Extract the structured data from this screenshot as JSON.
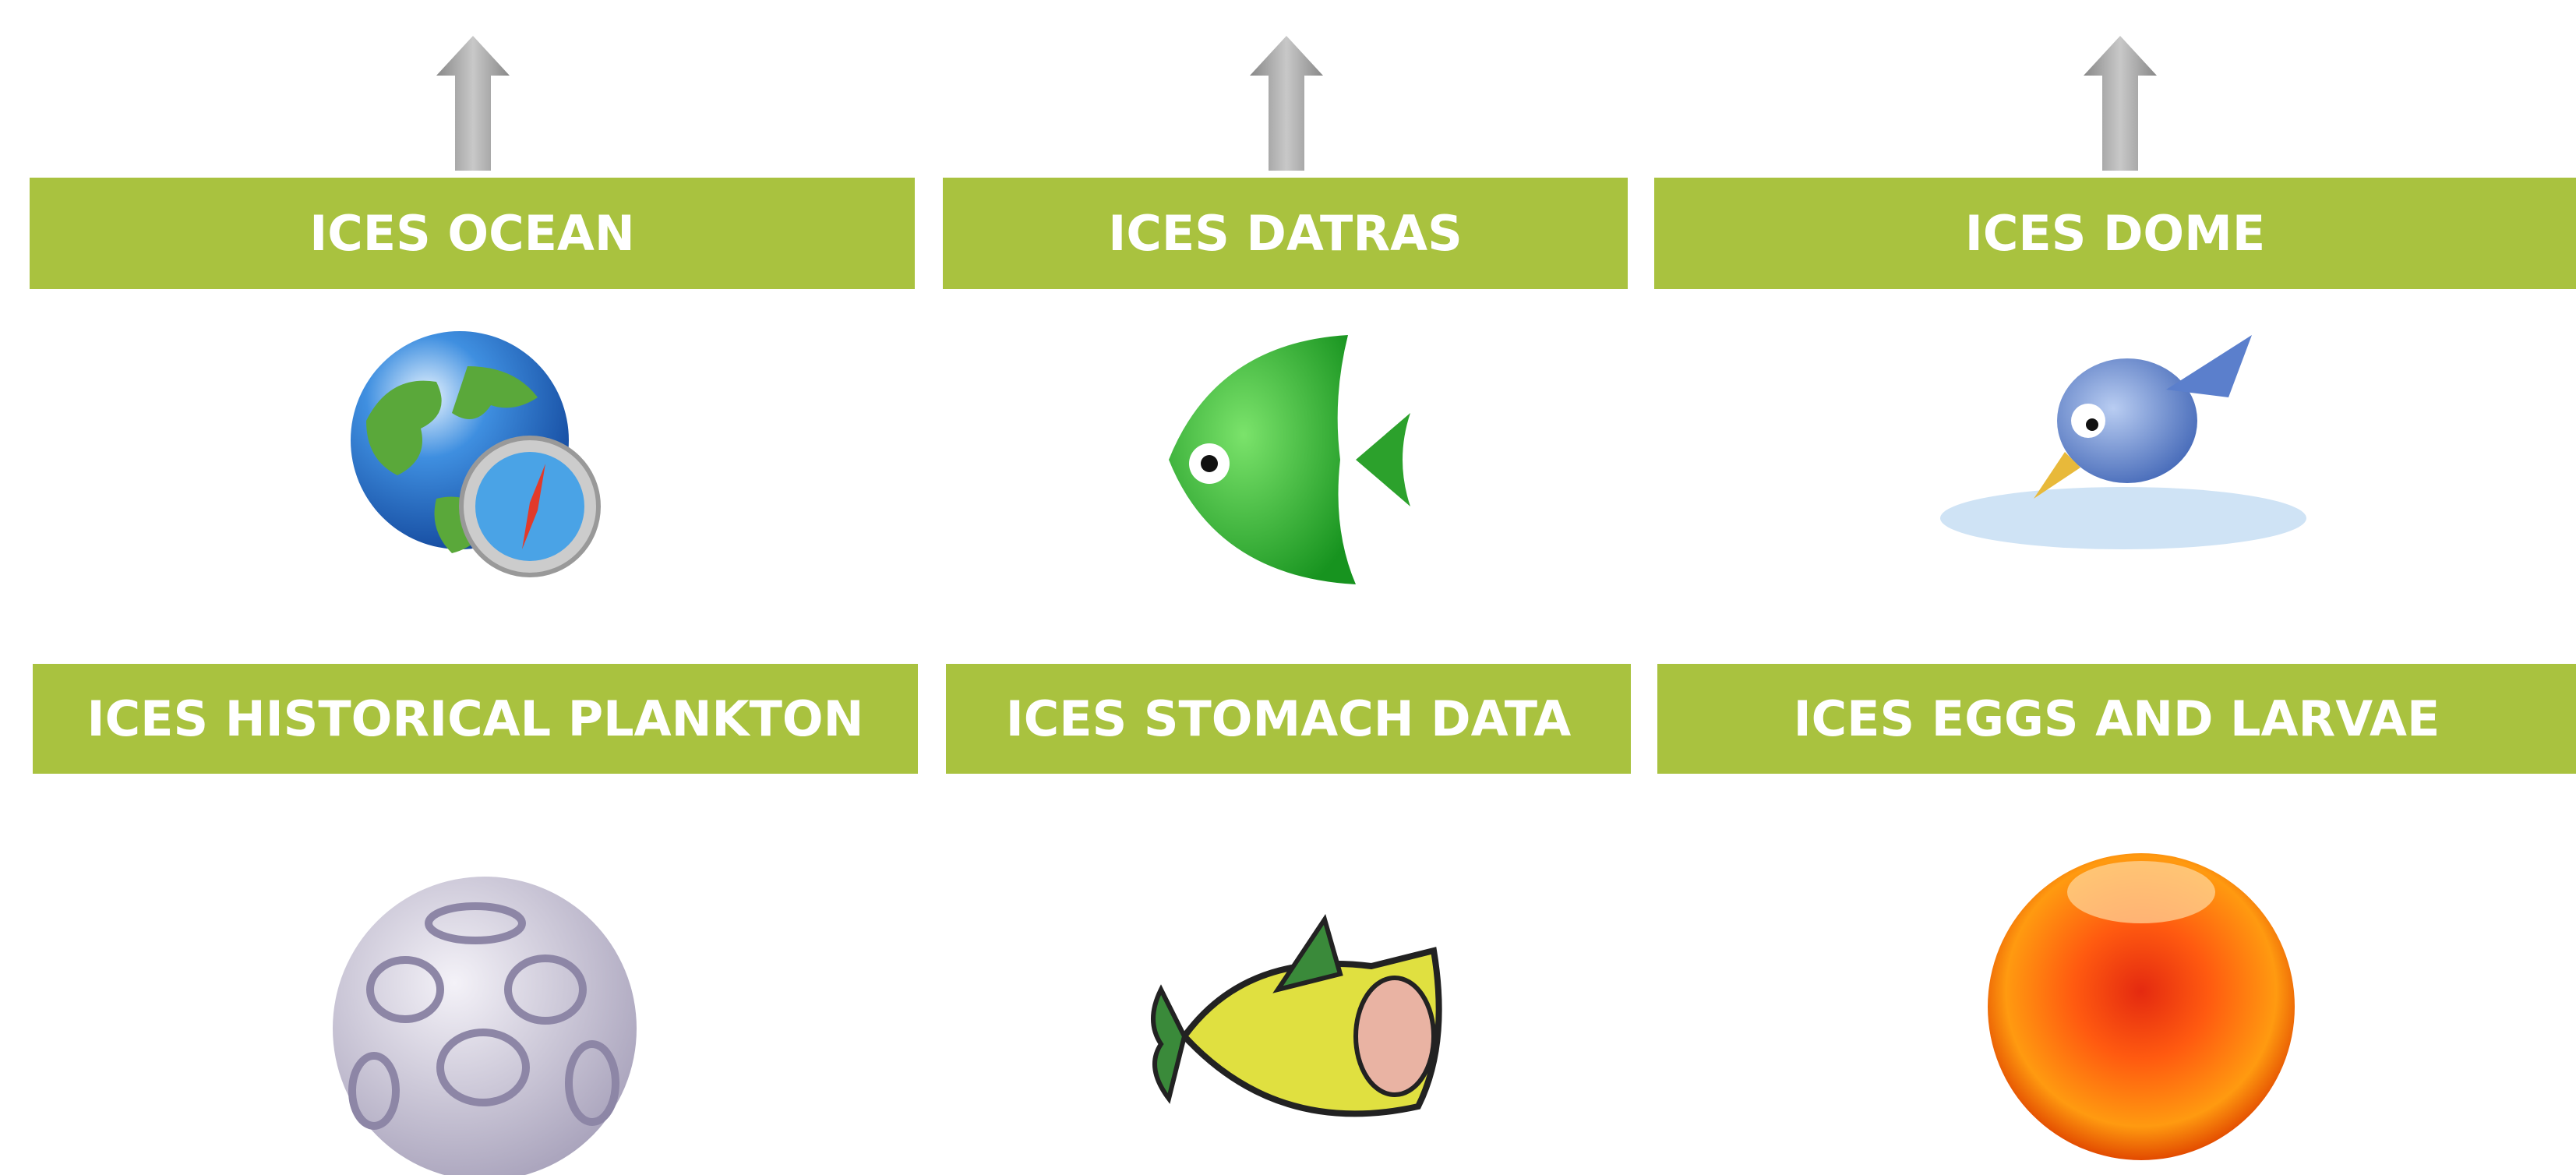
{
  "tiles": [
    {
      "label": "ICES OCEAN"
    },
    {
      "label": "ICES DATRAS"
    },
    {
      "label": "ICES DOME"
    },
    {
      "label": "ICES HISTORICAL PLANKTON"
    },
    {
      "label": "ICES STOMACH DATA"
    },
    {
      "label": "ICES EGGS AND LARVAE"
    }
  ]
}
